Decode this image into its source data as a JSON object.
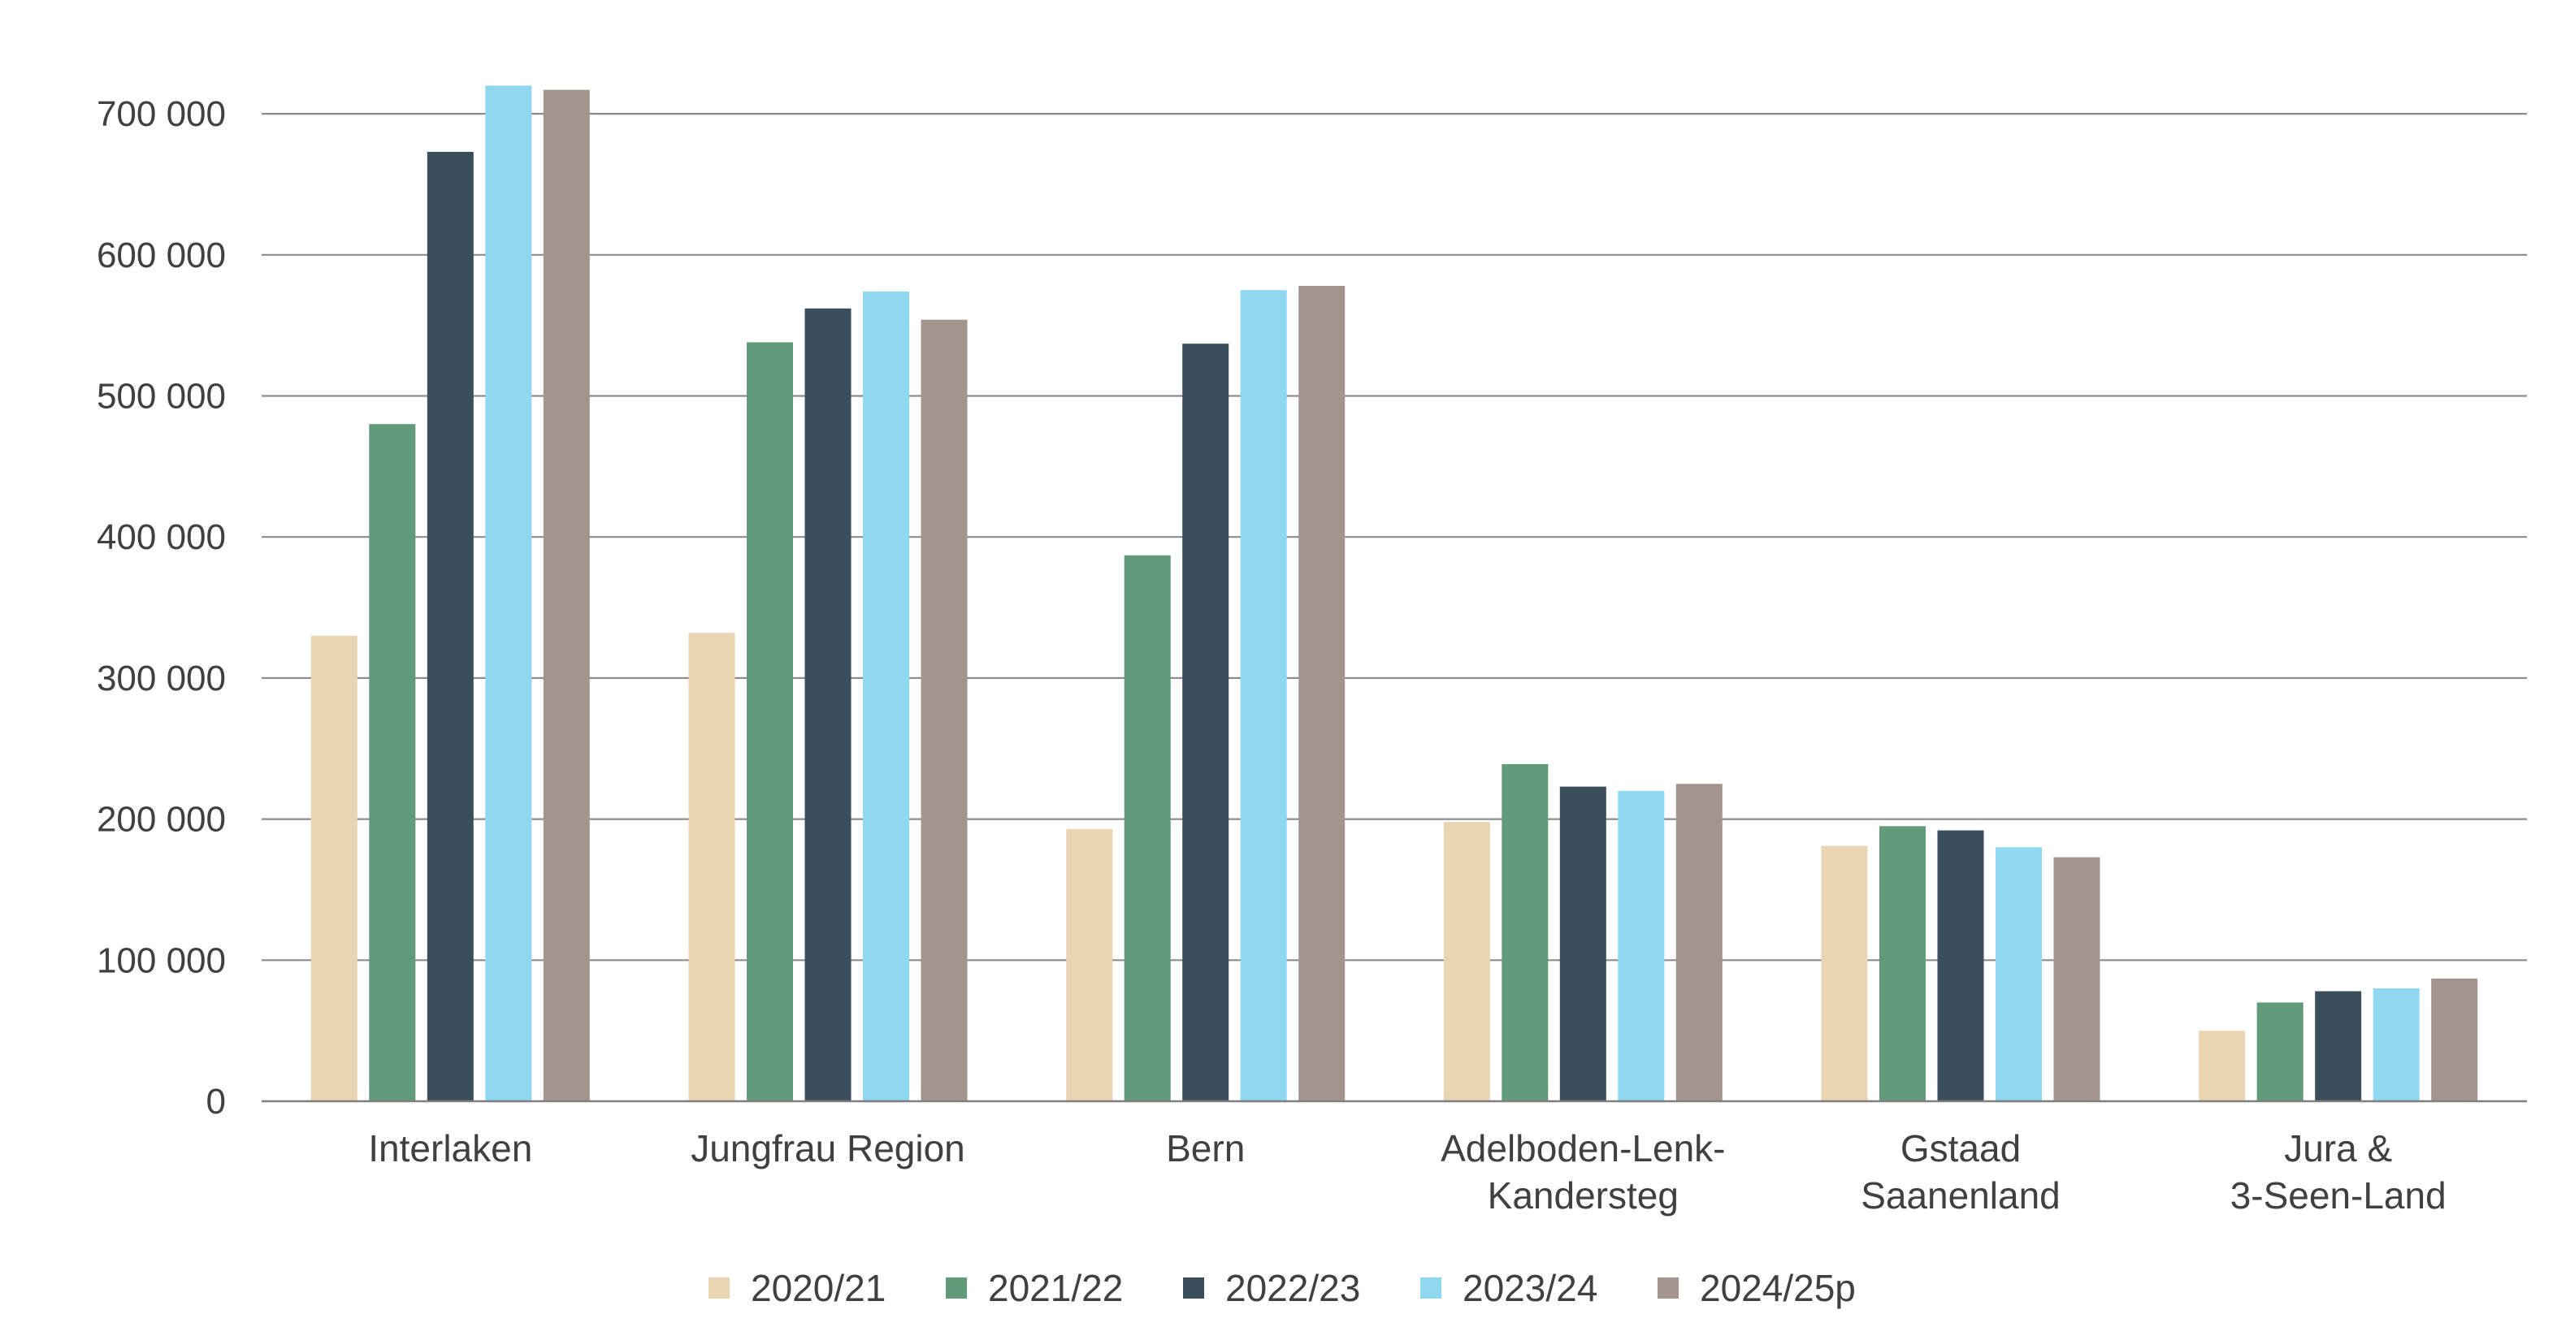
{
  "chart_data": {
    "type": "bar",
    "title": "",
    "xlabel": "",
    "ylabel": "",
    "ylim": [
      0,
      720000
    ],
    "grid": true,
    "legend_position": "bottom",
    "y_ticks": [
      {
        "value": 0,
        "label": "0"
      },
      {
        "value": 100000,
        "label": "100 000"
      },
      {
        "value": 200000,
        "label": "200 000"
      },
      {
        "value": 300000,
        "label": "300 000"
      },
      {
        "value": 400000,
        "label": "400 000"
      },
      {
        "value": 500000,
        "label": "500 000"
      },
      {
        "value": 600000,
        "label": "600 000"
      },
      {
        "value": 700000,
        "label": "700 000"
      }
    ],
    "categories": [
      [
        "Interlaken"
      ],
      [
        "Jungfrau Region"
      ],
      [
        "Bern"
      ],
      [
        "Adelboden-Lenk-",
        "Kandersteg"
      ],
      [
        "Gstaad",
        "Saanenland"
      ],
      [
        "Jura &",
        "3-Seen-Land"
      ]
    ],
    "series": [
      {
        "name": "2020/21",
        "color": "#ead5b3",
        "values": [
          330000,
          332000,
          193000,
          198000,
          181000,
          50000
        ]
      },
      {
        "name": "2021/22",
        "color": "#629b7b",
        "values": [
          480000,
          538000,
          387000,
          239000,
          195000,
          70000
        ]
      },
      {
        "name": "2022/23",
        "color": "#3a4f5b",
        "values": [
          673000,
          562000,
          537000,
          223000,
          192000,
          78000
        ]
      },
      {
        "name": "2023/24",
        "color": "#8fd8f0",
        "values": [
          720000,
          574000,
          575000,
          220000,
          180000,
          80000
        ]
      },
      {
        "name": "2024/25p",
        "color": "#a3958d",
        "values": [
          717000,
          554000,
          578000,
          225000,
          173000,
          87000
        ]
      }
    ],
    "colors": {
      "grid": "#8c8c8c",
      "axis": "#7f7f7f",
      "text": "#404040"
    }
  }
}
